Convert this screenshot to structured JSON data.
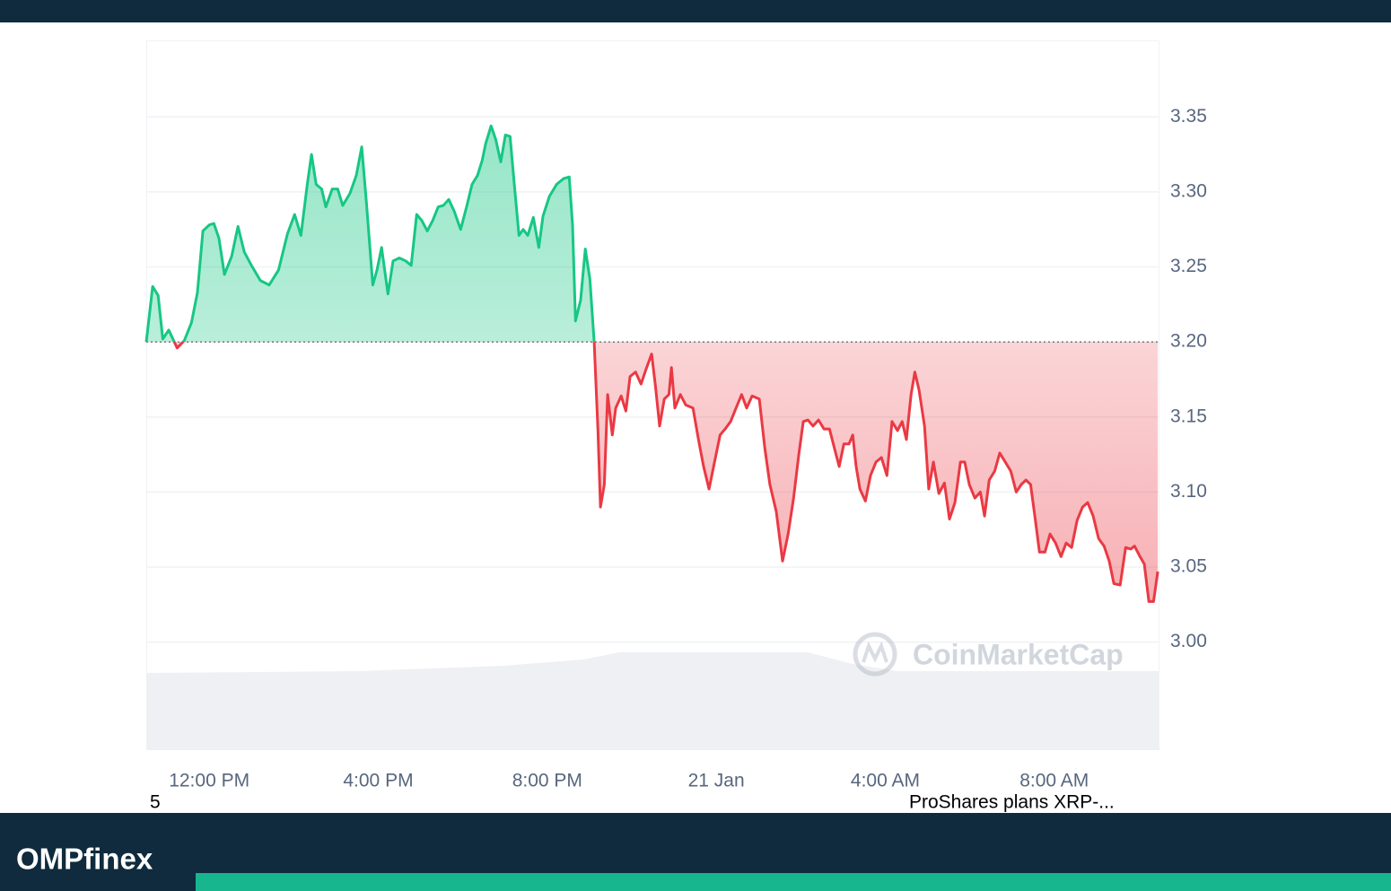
{
  "chart_data": {
    "type": "line",
    "x": [
      10.51,
      10.66,
      10.79,
      10.9,
      11.04,
      11.24,
      11.41,
      11.58,
      11.72,
      11.85,
      12.0,
      12.11,
      12.23,
      12.36,
      12.53,
      12.68,
      12.83,
      13.0,
      13.21,
      13.42,
      13.64,
      13.85,
      14.02,
      14.17,
      14.32,
      14.42,
      14.53,
      14.66,
      14.76,
      14.91,
      15.04,
      15.16,
      15.33,
      15.48,
      15.61,
      15.72,
      15.87,
      15.97,
      16.08,
      16.23,
      16.35,
      16.5,
      16.65,
      16.78,
      16.91,
      17.03,
      17.16,
      17.29,
      17.42,
      17.54,
      17.67,
      17.8,
      17.95,
      18.1,
      18.22,
      18.35,
      18.46,
      18.54,
      18.67,
      18.78,
      18.9,
      19.01,
      19.12,
      19.22,
      19.33,
      19.43,
      19.54,
      19.67,
      19.8,
      19.9,
      20.05,
      20.22,
      20.39,
      20.52,
      20.6,
      20.67,
      20.79,
      20.9,
      21.01,
      21.11,
      21.2,
      21.26,
      21.35,
      21.43,
      21.54,
      21.62,
      21.75,
      21.86,
      21.96,
      22.09,
      22.22,
      22.34,
      22.47,
      22.56,
      22.66,
      22.77,
      22.88,
      22.94,
      23.02,
      23.15,
      23.28,
      23.45,
      23.58,
      23.7,
      23.83,
      23.96,
      24.09,
      24.21,
      24.34,
      24.47,
      24.6,
      24.72,
      24.85,
      25.02,
      25.15,
      25.27,
      25.42,
      25.57,
      25.7,
      25.83,
      25.95,
      26.06,
      26.17,
      26.29,
      26.42,
      26.55,
      26.68,
      26.8,
      26.91,
      27.02,
      27.14,
      27.23,
      27.31,
      27.4,
      27.53,
      27.65,
      27.78,
      27.91,
      28.04,
      28.16,
      28.29,
      28.4,
      28.5,
      28.61,
      28.7,
      28.8,
      28.93,
      29.03,
      29.14,
      29.27,
      29.4,
      29.52,
      29.65,
      29.78,
      29.88,
      29.99,
      30.12,
      30.25,
      30.35,
      30.46,
      30.59,
      30.71,
      30.84,
      30.97,
      31.1,
      31.22,
      31.33,
      31.44,
      31.54,
      31.65,
      31.78,
      31.9,
      32.03,
      32.16,
      32.28,
      32.41,
      32.54,
      32.67,
      32.79,
      32.92,
      33.05,
      33.18,
      33.3,
      33.41,
      33.56,
      33.69,
      33.81,
      33.9,
      34.03,
      34.13,
      34.24,
      34.35,
      34.45
    ],
    "values": [
      3.2,
      3.237,
      3.231,
      3.202,
      3.208,
      3.196,
      3.201,
      3.213,
      3.233,
      3.274,
      3.278,
      3.279,
      3.269,
      3.245,
      3.257,
      3.277,
      3.26,
      3.251,
      3.241,
      3.238,
      3.248,
      3.272,
      3.285,
      3.271,
      3.305,
      3.325,
      3.305,
      3.302,
      3.29,
      3.302,
      3.302,
      3.291,
      3.299,
      3.311,
      3.33,
      3.293,
      3.238,
      3.248,
      3.263,
      3.232,
      3.254,
      3.256,
      3.254,
      3.251,
      3.285,
      3.281,
      3.274,
      3.281,
      3.29,
      3.291,
      3.295,
      3.287,
      3.275,
      3.291,
      3.305,
      3.311,
      3.321,
      3.332,
      3.344,
      3.335,
      3.32,
      3.338,
      3.337,
      3.305,
      3.271,
      3.275,
      3.271,
      3.283,
      3.263,
      3.284,
      3.297,
      3.305,
      3.309,
      3.31,
      3.278,
      3.214,
      3.228,
      3.262,
      3.242,
      3.2,
      3.141,
      3.09,
      3.105,
      3.165,
      3.138,
      3.156,
      3.164,
      3.154,
      3.177,
      3.18,
      3.172,
      3.182,
      3.192,
      3.171,
      3.144,
      3.162,
      3.165,
      3.183,
      3.156,
      3.165,
      3.158,
      3.156,
      3.135,
      3.117,
      3.102,
      3.12,
      3.138,
      3.142,
      3.147,
      3.156,
      3.165,
      3.156,
      3.164,
      3.162,
      3.129,
      3.105,
      3.087,
      3.054,
      3.072,
      3.096,
      3.124,
      3.147,
      3.148,
      3.144,
      3.148,
      3.142,
      3.142,
      3.129,
      3.117,
      3.132,
      3.132,
      3.138,
      3.117,
      3.102,
      3.094,
      3.111,
      3.12,
      3.123,
      3.111,
      3.147,
      3.141,
      3.147,
      3.135,
      3.165,
      3.18,
      3.168,
      3.144,
      3.102,
      3.12,
      3.099,
      3.106,
      3.082,
      3.093,
      3.12,
      3.12,
      3.105,
      3.096,
      3.1,
      3.084,
      3.108,
      3.114,
      3.126,
      3.12,
      3.114,
      3.1,
      3.105,
      3.108,
      3.105,
      3.084,
      3.06,
      3.06,
      3.072,
      3.066,
      3.057,
      3.066,
      3.063,
      3.081,
      3.09,
      3.093,
      3.084,
      3.069,
      3.064,
      3.054,
      3.039,
      3.038,
      3.063,
      3.062,
      3.064,
      3.057,
      3.052,
      3.027,
      3.027,
      3.047
    ],
    "baseline": 3.2,
    "color_above": "#16c784",
    "color_below": "#ea3943",
    "xlim": [
      10.51,
      34.49
    ],
    "xticks": [
      {
        "value": 12,
        "label": "12:00 PM"
      },
      {
        "value": 16,
        "label": "4:00 PM"
      },
      {
        "value": 20,
        "label": "8:00 PM"
      },
      {
        "value": 24,
        "label": "21 Jan"
      },
      {
        "value": 28,
        "label": "4:00 AM"
      },
      {
        "value": 32,
        "label": "8:00 AM"
      }
    ],
    "ylim": [
      2.928,
      3.401
    ],
    "yticks": [
      {
        "value": 3,
        "label": "3.00"
      },
      3.05,
      {
        "value": 3.1,
        "label": "3.10"
      },
      3.15,
      {
        "value": 3.2,
        "label": "3.20"
      },
      3.25,
      {
        "value": 3.3,
        "label": "3.30"
      },
      3.35
    ],
    "grid": true,
    "watermark": "CoinMarketCap",
    "annotations": [
      "5",
      "ProShares plans XRP-..."
    ]
  },
  "brand": "OMPfinex"
}
